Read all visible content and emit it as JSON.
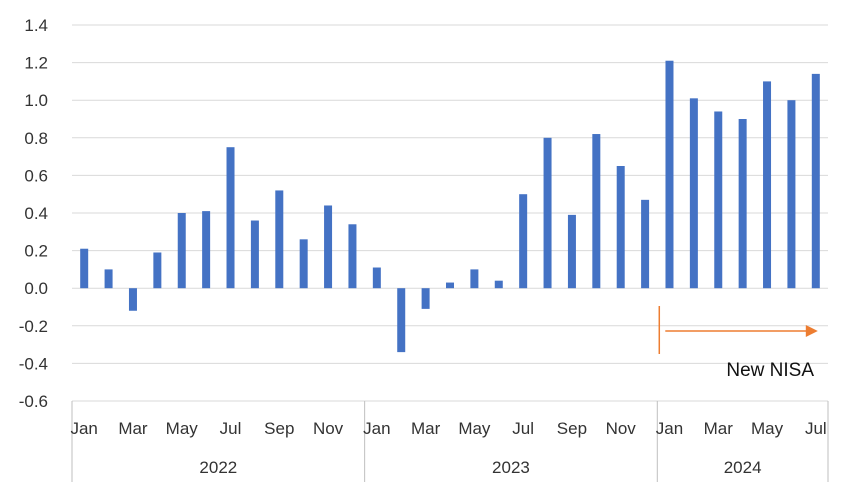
{
  "chart_data": {
    "type": "bar",
    "title": "",
    "xlabel": "",
    "ylabel": "",
    "ylim": [
      -0.6,
      1.4
    ],
    "yticks": [
      "1.4",
      "1.2",
      "1.0",
      "0.8",
      "0.6",
      "0.4",
      "0.2",
      "0.0",
      "-0.2",
      "-0.4",
      "-0.6"
    ],
    "ytick_values": [
      1.4,
      1.2,
      1.0,
      0.8,
      0.6,
      0.4,
      0.2,
      0.0,
      -0.2,
      -0.4,
      -0.6
    ],
    "grid": "horizontal",
    "bar_color": "#4472C4",
    "years": [
      {
        "label": "2022",
        "months": 12
      },
      {
        "label": "2023",
        "months": 12
      },
      {
        "label": "2024",
        "months": 7
      }
    ],
    "month_labels": [
      "Jan",
      "",
      "Mar",
      "",
      "May",
      "",
      "Jul",
      "",
      "Sep",
      "",
      "Nov",
      "",
      "Jan",
      "",
      "Mar",
      "",
      "May",
      "",
      "Jul",
      "",
      "Sep",
      "",
      "Nov",
      "",
      "Jan",
      "",
      "Mar",
      "",
      "May",
      "",
      "Jul"
    ],
    "values": [
      0.21,
      0.1,
      -0.12,
      0.19,
      0.4,
      0.41,
      0.75,
      0.36,
      0.52,
      0.26,
      0.44,
      0.34,
      0.11,
      -0.34,
      -0.11,
      0.03,
      0.1,
      0.04,
      0.5,
      0.8,
      0.39,
      0.82,
      0.65,
      0.47,
      1.21,
      1.01,
      0.94,
      0.9,
      1.1,
      1.0,
      1.14
    ],
    "annotation": {
      "text": "New NISA",
      "color": "#ED7D31",
      "start_index": 24,
      "end_index": 30
    }
  }
}
